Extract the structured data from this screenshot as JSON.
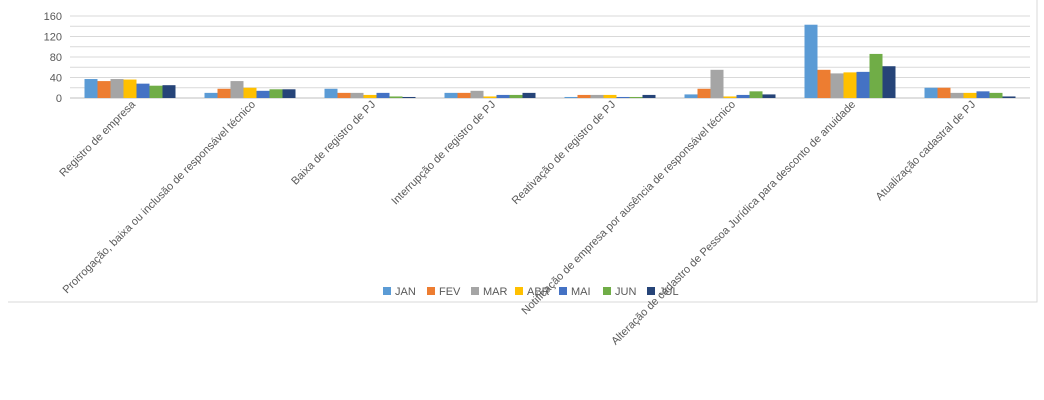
{
  "chart_data": {
    "type": "bar",
    "title": "",
    "xlabel": "",
    "ylabel": "",
    "ylim": [
      0,
      160
    ],
    "yticks": [
      0,
      20,
      40,
      60,
      80,
      100,
      120,
      140,
      160
    ],
    "ytick_labels": [
      "0",
      "",
      "40",
      "",
      "80",
      "",
      "120",
      "",
      "160"
    ],
    "grid": true,
    "legend_position": "bottom",
    "categories": [
      "Registro de empresa",
      "Prorrogação, baixa ou inclusão de responsável técnico",
      "Baixa de registro de PJ",
      "Interrupção de registro de PJ",
      "Reativação de registro de PJ",
      "Notificação de empresa por ausência de responsável técnico",
      "Alteração de cadastro de Pessoa Jurídica para desconto de anuidade",
      "Atualização cadastral de PJ"
    ],
    "series": [
      {
        "name": "JAN",
        "color": "#5B9BD5",
        "values": [
          37,
          10,
          18,
          10,
          2,
          7,
          143,
          20
        ]
      },
      {
        "name": "FEV",
        "color": "#ED7D31",
        "values": [
          33,
          18,
          10,
          10,
          6,
          18,
          55,
          20
        ]
      },
      {
        "name": "MAR",
        "color": "#A5A5A5",
        "values": [
          37,
          33,
          10,
          14,
          6,
          55,
          48,
          10
        ]
      },
      {
        "name": "ABR",
        "color": "#FFC000",
        "values": [
          36,
          20,
          6,
          3,
          6,
          3,
          50,
          10
        ]
      },
      {
        "name": "MAI",
        "color": "#4472C4",
        "values": [
          28,
          14,
          10,
          6,
          2,
          6,
          51,
          13
        ]
      },
      {
        "name": "JUN",
        "color": "#70AD47",
        "values": [
          24,
          17,
          3,
          6,
          2,
          13,
          86,
          10
        ]
      },
      {
        "name": "JUL",
        "color": "#264478",
        "values": [
          25,
          17,
          2,
          10,
          6,
          7,
          62,
          3
        ]
      }
    ]
  }
}
